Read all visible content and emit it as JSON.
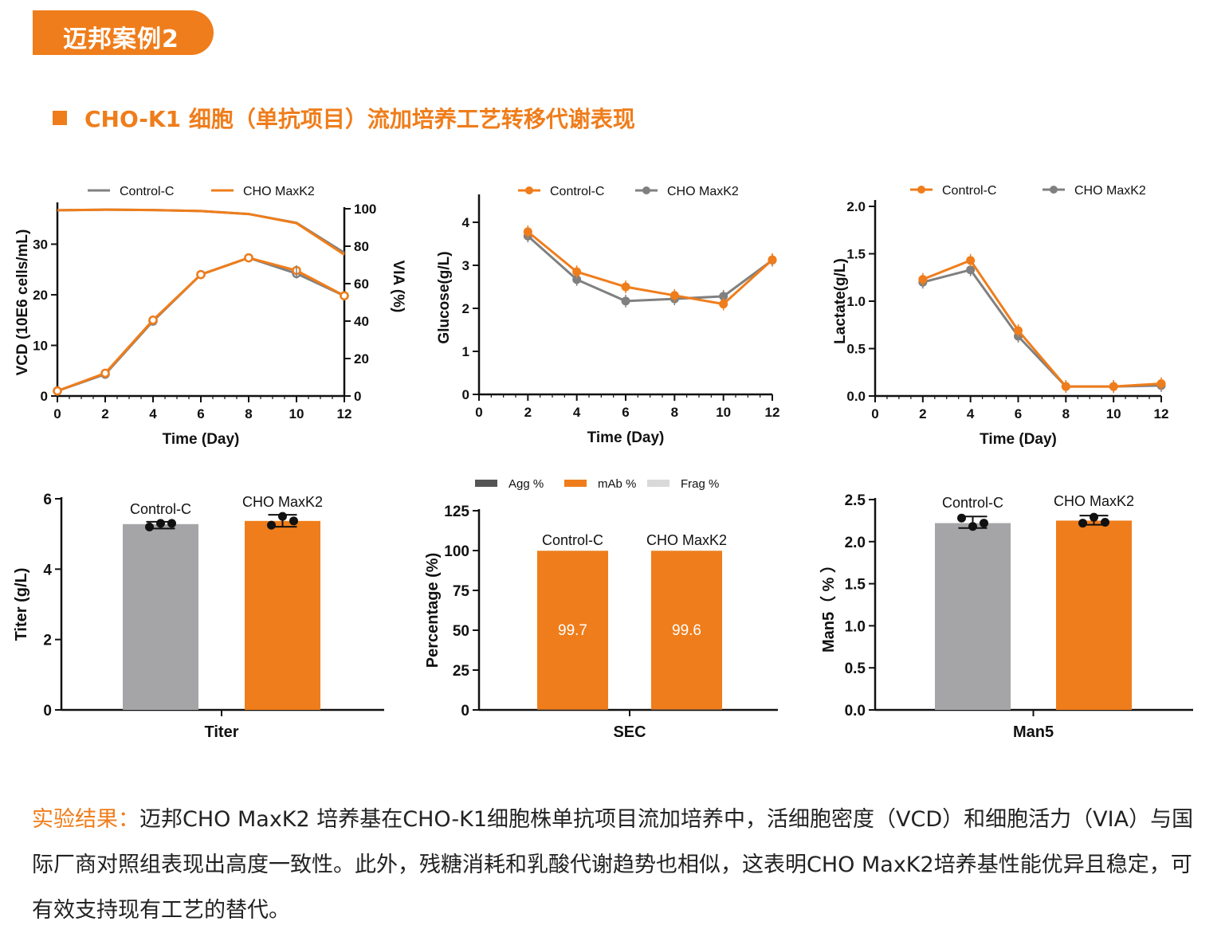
{
  "badge": "迈邦案例2",
  "section_title": "CHO-K1 细胞（单抗项目）流加培养工艺转移代谢表现",
  "colors": {
    "orange": "#ef7d1b",
    "gray": "#808080",
    "bar_gray": "#a5a5a8",
    "frag": "#d9d9d9",
    "agg": "#555555"
  },
  "result": {
    "label": "实验结果：",
    "text": "迈邦CHO MaxK2 培养基在CHO-K1细胞株单抗项目流加培养中，活细胞密度（VCD）和细胞活力（VIA）与国际厂商对照组表现出高度一致性。此外，残糖消耗和乳酸代谢趋势也相似，这表明CHO MaxK2培养基性能优异且稳定，可有效支持现有工艺的替代。"
  },
  "chart_data": [
    {
      "type": "line",
      "xlabel": "Time (Day)",
      "ylabel": "VCD (10E6 cells/mL)",
      "y2label": "VIA (%)",
      "x": [
        0,
        2,
        4,
        6,
        8,
        10,
        12
      ],
      "xlim": [
        0,
        12
      ],
      "ylim": [
        0,
        37
      ],
      "y2lim": [
        0,
        100
      ],
      "xticks": [
        "0",
        "2",
        "4",
        "6",
        "8",
        "10",
        "12"
      ],
      "yticks": [
        "0",
        "10",
        "20",
        "30"
      ],
      "y2ticks": [
        "0",
        "20",
        "40",
        "60",
        "80",
        "100"
      ],
      "legend": [
        "Control-C",
        "CHO MaxK2"
      ],
      "series": [
        {
          "name": "Control-C",
          "axis": "left",
          "values": [
            1.0,
            4.3,
            14.8,
            24.0,
            27.3,
            24.2,
            19.8
          ]
        },
        {
          "name": "CHO MaxK2",
          "axis": "left",
          "values": [
            1.0,
            4.5,
            15.0,
            24.0,
            27.3,
            24.8,
            19.8
          ]
        },
        {
          "name": "Control-C",
          "axis": "right",
          "values": [
            99.2,
            99.5,
            99.3,
            98.8,
            97.2,
            92.5,
            76.5
          ]
        },
        {
          "name": "CHO MaxK2",
          "axis": "right",
          "values": [
            99.2,
            99.5,
            99.3,
            98.8,
            97.2,
            92.3,
            75.5
          ]
        }
      ]
    },
    {
      "type": "line",
      "xlabel": "Time (Day)",
      "ylabel": "Glucose(g/L)",
      "x": [
        2,
        4,
        6,
        8,
        10,
        12
      ],
      "xlim": [
        0,
        12
      ],
      "ylim": [
        0,
        4.5
      ],
      "xticks": [
        "0",
        "2",
        "4",
        "6",
        "8",
        "10",
        "12"
      ],
      "yticks": [
        "0",
        "1",
        "2",
        "3",
        "4"
      ],
      "legend": [
        "Control-C",
        "CHO MaxK2"
      ],
      "series": [
        {
          "name": "Control-C",
          "values": [
            3.78,
            2.85,
            2.5,
            2.3,
            2.1,
            3.13
          ]
        },
        {
          "name": "CHO MaxK2",
          "values": [
            3.68,
            2.67,
            2.17,
            2.22,
            2.28,
            3.12
          ]
        }
      ]
    },
    {
      "type": "line",
      "xlabel": "Time (Day)",
      "ylabel": "Lactate(g/L)",
      "x": [
        2,
        4,
        6,
        8,
        10,
        12
      ],
      "xlim": [
        0,
        12
      ],
      "ylim": [
        0,
        2.0
      ],
      "xticks": [
        "0",
        "2",
        "4",
        "6",
        "8",
        "10",
        "12"
      ],
      "yticks": [
        "0.0",
        "0.5",
        "1.0",
        "1.5",
        "2.0"
      ],
      "legend": [
        "Control-C",
        "CHO MaxK2"
      ],
      "series": [
        {
          "name": "Control-C",
          "values": [
            1.23,
            1.43,
            0.69,
            0.1,
            0.1,
            0.13
          ]
        },
        {
          "name": "CHO MaxK2",
          "values": [
            1.2,
            1.33,
            0.63,
            0.1,
            0.1,
            0.11
          ]
        }
      ]
    },
    {
      "type": "bar",
      "xlabel": "Titer",
      "ylabel": "Titer (g/L)",
      "categories": [
        "Control-C",
        "CHO MaxK2"
      ],
      "values": [
        5.28,
        5.37
      ],
      "ylim": [
        0,
        6
      ],
      "yticks": [
        "0",
        "2",
        "4",
        "6"
      ],
      "points": [
        [
          5.2,
          5.3,
          5.3
        ],
        [
          5.25,
          5.5,
          5.37
        ]
      ]
    },
    {
      "type": "bar",
      "stacked": true,
      "xlabel": "SEC",
      "ylabel": "Percentage (%)",
      "categories": [
        "Control-C",
        "CHO MaxK2"
      ],
      "legend": [
        "Agg %",
        "mAb %",
        "Frag %"
      ],
      "series": [
        {
          "name": "Agg %",
          "values": [
            0.2,
            0.3
          ]
        },
        {
          "name": "mAb %",
          "values": [
            99.7,
            99.6
          ]
        },
        {
          "name": "Frag %",
          "values": [
            0.1,
            0.1
          ]
        }
      ],
      "data_labels": [
        "99.7",
        "99.6"
      ],
      "ylim": [
        0,
        125
      ],
      "yticks": [
        "0",
        "25",
        "50",
        "75",
        "100",
        "125"
      ]
    },
    {
      "type": "bar",
      "xlabel": "Man5",
      "ylabel": "Man5（ % ）",
      "categories": [
        "Control-C",
        "CHO MaxK2"
      ],
      "values": [
        2.22,
        2.25
      ],
      "ylim": [
        0,
        2.5
      ],
      "yticks": [
        "0.0",
        "0.5",
        "1.0",
        "1.5",
        "2.0",
        "2.5"
      ],
      "points": [
        [
          2.28,
          2.18,
          2.22
        ],
        [
          2.22,
          2.29,
          2.23
        ]
      ]
    }
  ]
}
